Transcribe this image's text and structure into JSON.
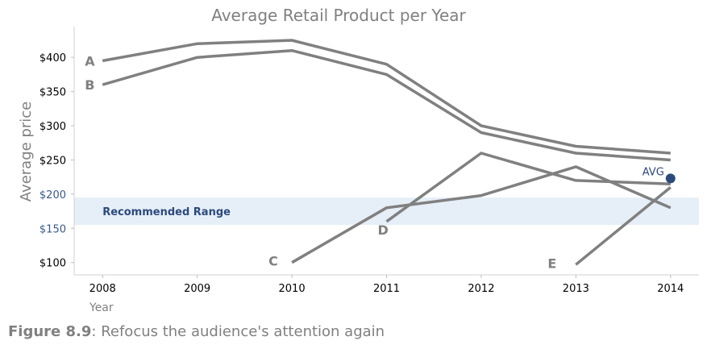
{
  "figure": {
    "number": "Figure 8.9",
    "caption": ": Refocus the audience's attention again"
  },
  "chart_data": {
    "type": "line",
    "title": "Average Retail Product per Year",
    "xlabel": "Year",
    "ylabel": "Average price",
    "categories": [
      "2008",
      "2009",
      "2010",
      "2011",
      "2012",
      "2013",
      "2014"
    ],
    "xlim": [
      2007.7,
      2014.3
    ],
    "ylim": [
      82,
      445
    ],
    "yticks": [
      100,
      150,
      200,
      250,
      300,
      350,
      400
    ],
    "ytick_format": "$",
    "highlight_ticks": [
      150,
      200
    ],
    "grid": false,
    "line_color": "#808080",
    "accent_color": "#2c4a7c",
    "band_color": "#e6eef7",
    "series": [
      {
        "name": "A",
        "x": [
          2008,
          2009,
          2010,
          2011,
          2012,
          2013,
          2014
        ],
        "y": [
          395,
          420,
          425,
          390,
          300,
          270,
          260
        ]
      },
      {
        "name": "B",
        "x": [
          2008,
          2009,
          2010,
          2011,
          2012,
          2013,
          2014
        ],
        "y": [
          360,
          400,
          410,
          375,
          290,
          260,
          250
        ]
      },
      {
        "name": "C",
        "x": [
          2010,
          2011,
          2012,
          2013,
          2014
        ],
        "y": [
          100,
          180,
          198,
          240,
          180
        ]
      },
      {
        "name": "D",
        "x": [
          2011,
          2012,
          2013,
          2014
        ],
        "y": [
          160,
          260,
          220,
          215
        ]
      },
      {
        "name": "E",
        "x": [
          2013,
          2014
        ],
        "y": [
          97,
          210
        ]
      }
    ],
    "band": {
      "low": 155,
      "high": 195,
      "label": "Recommended Range"
    },
    "average": {
      "x": 2014,
      "y": 223,
      "label": "AVG"
    }
  }
}
